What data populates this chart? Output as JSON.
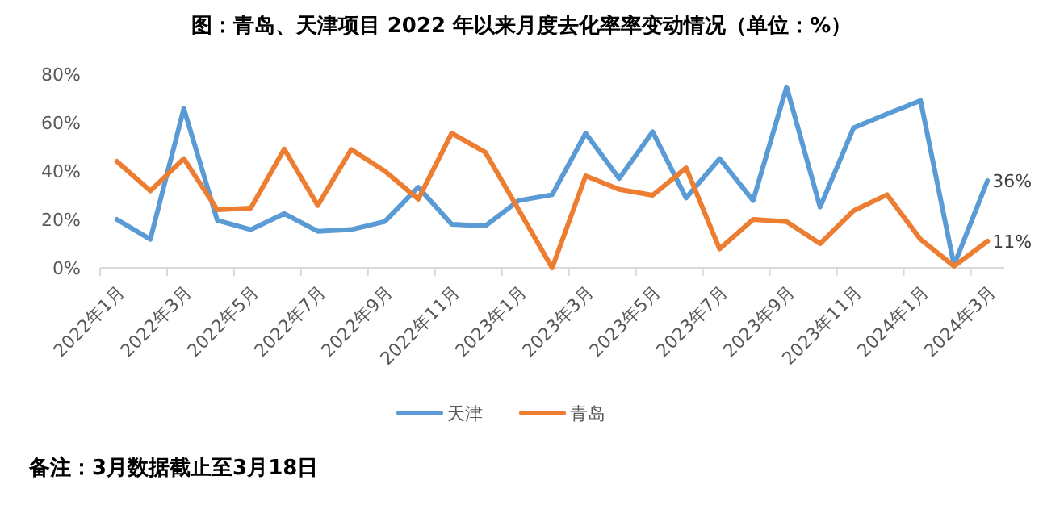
{
  "chart_data": {
    "type": "line",
    "title": "图：青岛、天津项目 2022 年以来月度去化率率变动情况（单位：%）",
    "categories": [
      "2022年1月",
      null,
      "2022年3月",
      null,
      "2022年5月",
      null,
      "2022年7月",
      null,
      "2022年9月",
      null,
      "2022年11月",
      null,
      "2023年1月",
      null,
      "2023年3月",
      null,
      "2023年5月",
      null,
      "2023年7月",
      null,
      "2023年9月",
      null,
      "2023年11月",
      null,
      "2024年1月",
      null,
      "2024年3月"
    ],
    "series": [
      {
        "name": "天津",
        "color": "#5b9bd5",
        "values": [
          20,
          11.8,
          65.8,
          19.6,
          15.8,
          22.4,
          15.1,
          15.8,
          19.1,
          33.3,
          18,
          17.3,
          27.8,
          30.2,
          55.6,
          36.9,
          56.2,
          28.9,
          45.1,
          27.8,
          74.7,
          25.1,
          57.8,
          63.6,
          69.1,
          1.1,
          36
        ],
        "value_labels": [
          null,
          null,
          null,
          null,
          null,
          null,
          null,
          null,
          null,
          null,
          null,
          null,
          null,
          null,
          null,
          null,
          null,
          null,
          null,
          null,
          null,
          null,
          null,
          null,
          null,
          null,
          "36%"
        ]
      },
      {
        "name": "青岛",
        "color": "#ed7d31",
        "values": [
          44,
          31.8,
          45.1,
          24,
          24.7,
          49.1,
          25.8,
          48.9,
          40,
          28.4,
          55.6,
          47.8,
          24,
          0,
          38,
          32.4,
          30,
          41.3,
          7.8,
          20,
          19.1,
          10,
          23.6,
          30.2,
          11.8,
          0.7,
          11
        ],
        "value_labels": [
          null,
          null,
          null,
          null,
          null,
          null,
          null,
          null,
          null,
          null,
          null,
          null,
          null,
          null,
          null,
          null,
          null,
          null,
          null,
          null,
          null,
          null,
          null,
          null,
          null,
          null,
          "11%"
        ]
      }
    ],
    "ylim": [
      0,
      80
    ],
    "yticks": [
      {
        "value": 0,
        "label": "0%"
      },
      {
        "value": 20,
        "label": "20%"
      },
      {
        "value": 40,
        "label": "40%"
      },
      {
        "value": 60,
        "label": "60%"
      },
      {
        "value": 80,
        "label": "80%"
      }
    ],
    "legend": "bottom",
    "annotations": [
      "备注：3月数据截止至3月18日"
    ]
  }
}
